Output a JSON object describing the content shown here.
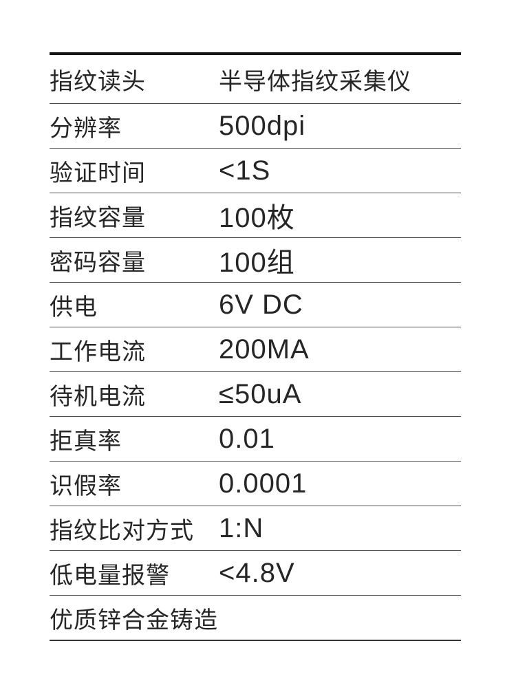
{
  "spec_table": {
    "rows": [
      {
        "label": "指纹读头",
        "value": "半导体指纹采集仪"
      },
      {
        "label": "分辨率",
        "value": "500dpi"
      },
      {
        "label": "验证时间",
        "value": "<1S"
      },
      {
        "label": "指纹容量",
        "value": "100枚"
      },
      {
        "label": "密码容量",
        "value": "100组"
      },
      {
        "label": "供电",
        "value": "6V DC"
      },
      {
        "label": "工作电流",
        "value": "200MA"
      },
      {
        "label": "待机电流",
        "value": "≤50uA"
      },
      {
        "label": "拒真率",
        "value": "0.01"
      },
      {
        "label": "识假率",
        "value": "0.0001"
      },
      {
        "label": "指纹比对方式",
        "value": "1:N"
      },
      {
        "label": "低电量报警",
        "value": "<4.8V"
      }
    ],
    "footer_note": "优质锌合金铸造"
  },
  "colors": {
    "background": "#ffffff",
    "text": "#262626",
    "top_rule": "#151515",
    "row_separator": "#4c4c4c",
    "bottom_rule": "#333333"
  }
}
